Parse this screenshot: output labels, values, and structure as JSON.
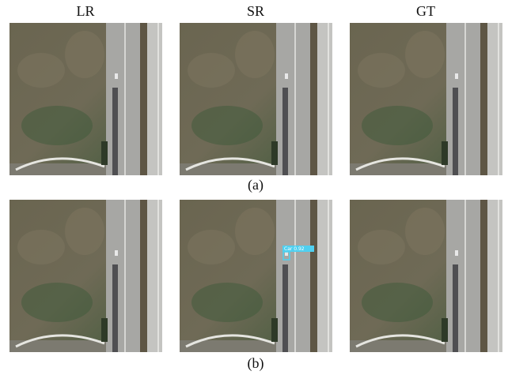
{
  "columns": [
    "LR",
    "SR",
    "GT"
  ],
  "rows": [
    {
      "caption": "(a)"
    },
    {
      "caption": "(b)",
      "detection": "Car 0.92"
    }
  ]
}
